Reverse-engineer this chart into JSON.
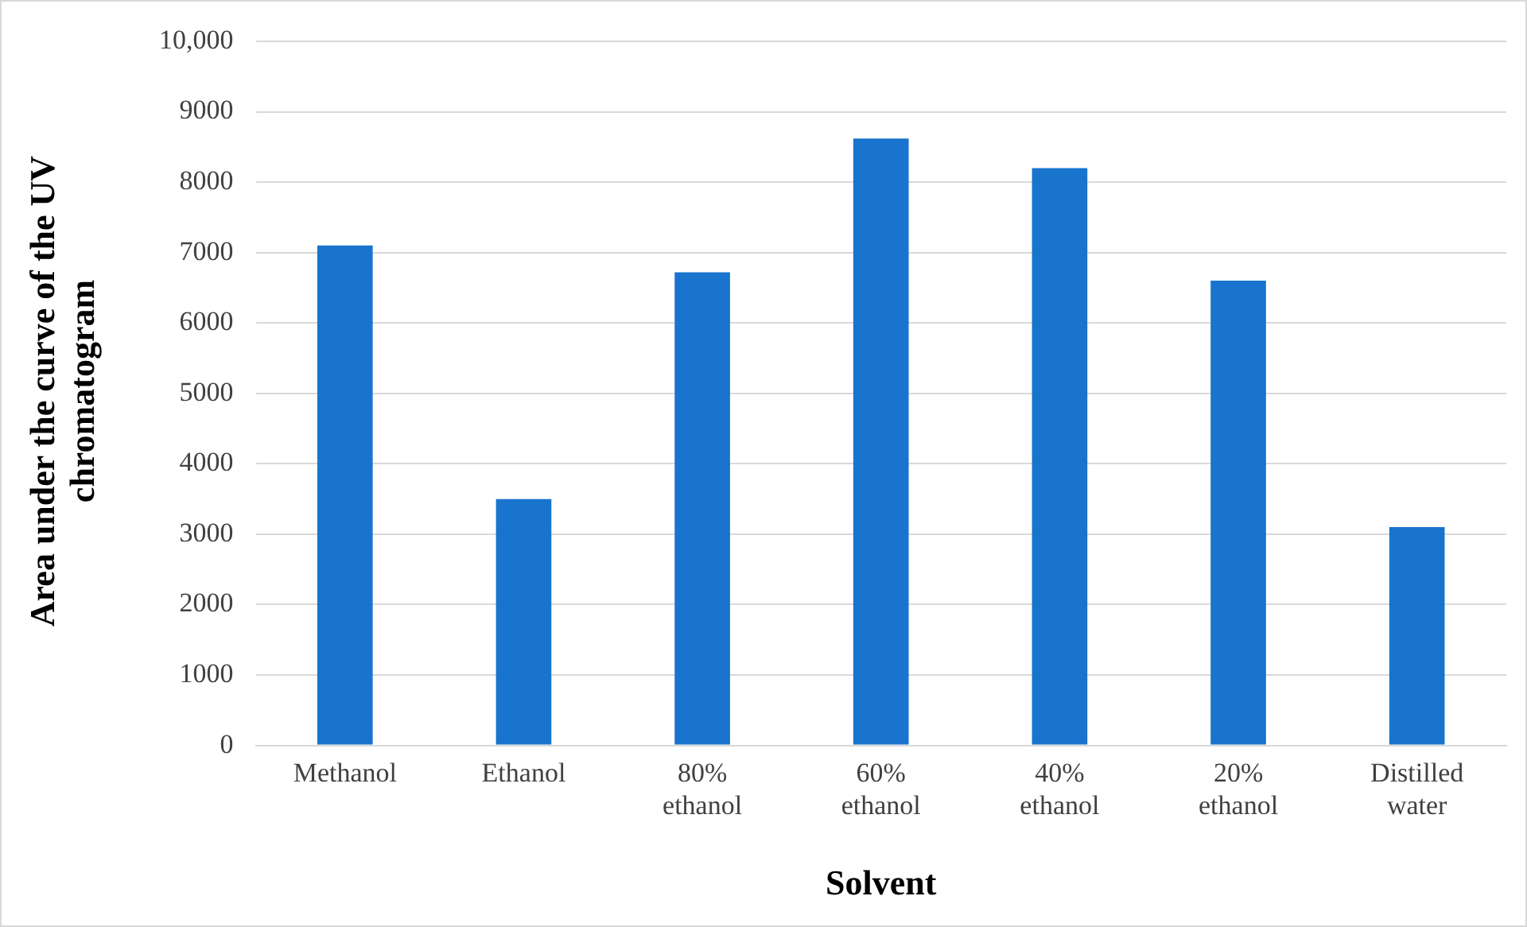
{
  "chart_data": {
    "type": "bar",
    "xlabel": "Solvent",
    "ylabel": "Area under the curve of the UV chromatogram",
    "categories": [
      "Methanol",
      "Ethanol",
      "80% ethanol",
      "60% ethanol",
      "40% ethanol",
      "20% ethanol",
      "Distilled water"
    ],
    "values": [
      7100,
      3500,
      6720,
      8620,
      8200,
      6600,
      3100
    ],
    "color": "#1874cd",
    "ylim": [
      0,
      10000
    ],
    "yticks": [
      0,
      1000,
      2000,
      3000,
      4000,
      5000,
      6000,
      7000,
      8000,
      9000,
      {
        "value": 10000,
        "label": "10,000"
      }
    ],
    "grid": "y",
    "legend": false
  }
}
